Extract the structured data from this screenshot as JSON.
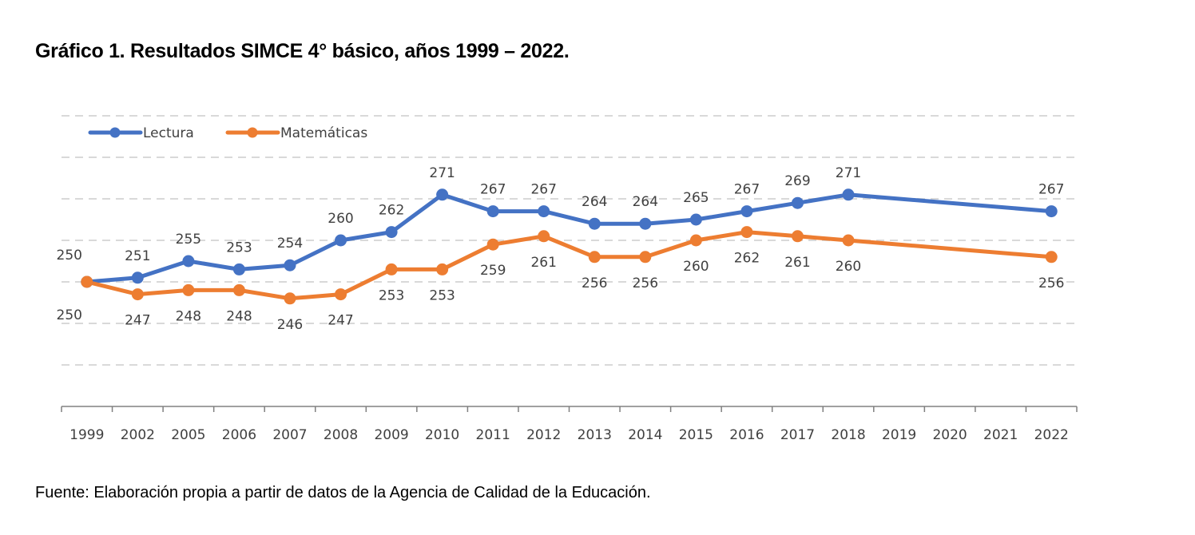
{
  "header": {
    "title": "Gráfico 1. Resultados SIMCE 4° básico, años 1999 – 2022."
  },
  "footer": {
    "source": "Fuente: Elaboración propia a partir de datos de la Agencia de Calidad de la Educación."
  },
  "chart_data": {
    "type": "line",
    "title": "Gráfico 1. Resultados SIMCE 4° básico, años 1999 – 2022.",
    "xlabel": "",
    "ylabel": "",
    "categories": [
      "1999",
      "2002",
      "2005",
      "2006",
      "2007",
      "2008",
      "2009",
      "2010",
      "2011",
      "2012",
      "2013",
      "2014",
      "2015",
      "2016",
      "2017",
      "2018",
      "2019",
      "2020",
      "2021",
      "2022"
    ],
    "ylim": [
      220,
      290
    ],
    "y_gridlines": [
      230,
      240,
      250,
      260,
      270,
      280,
      290
    ],
    "y_tick_labels_shown": false,
    "grid": true,
    "legend_position": "top-left",
    "series": [
      {
        "name": "Lectura",
        "color": "#4472C4",
        "values": [
          250,
          251,
          255,
          253,
          254,
          260,
          262,
          271,
          267,
          267,
          264,
          264,
          265,
          267,
          269,
          271,
          null,
          null,
          null,
          267
        ],
        "label_position": "above"
      },
      {
        "name": "Matemáticas",
        "color": "#ED7D31",
        "values": [
          250,
          247,
          248,
          248,
          246,
          247,
          253,
          253,
          259,
          261,
          256,
          256,
          260,
          262,
          261,
          260,
          null,
          null,
          null,
          256
        ],
        "label_position": "below"
      }
    ]
  }
}
